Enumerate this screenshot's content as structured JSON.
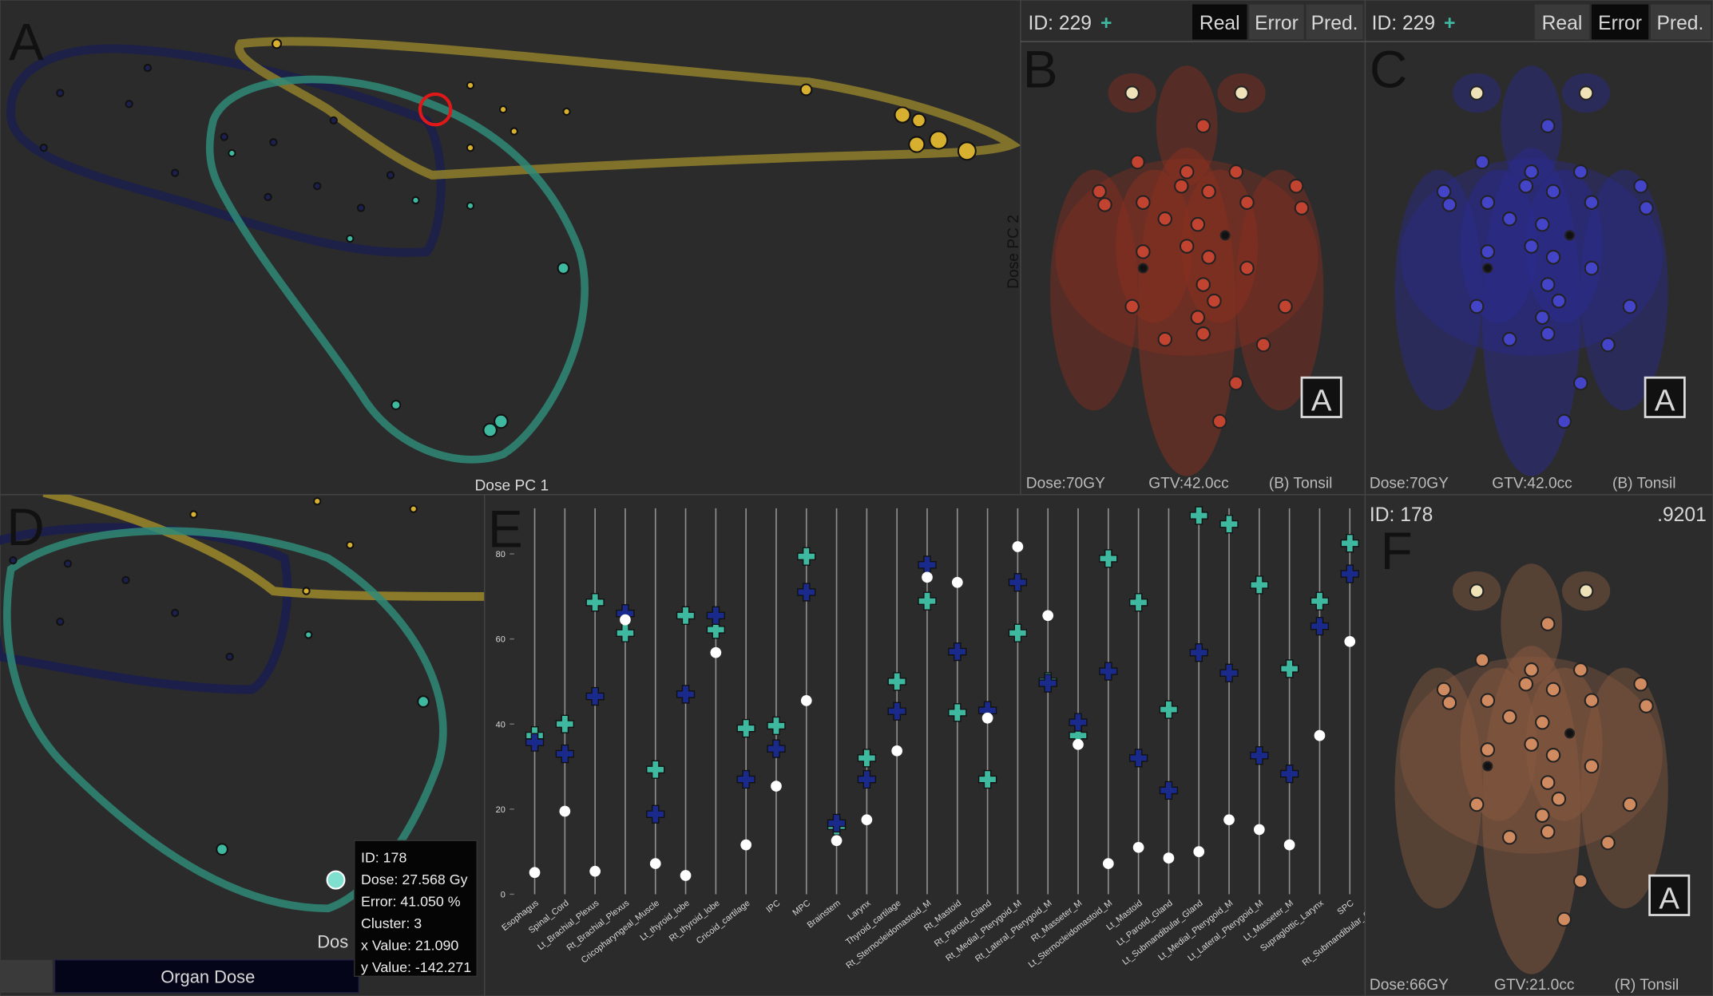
{
  "panel_labels": [
    "A",
    "B",
    "C",
    "D",
    "E",
    "F"
  ],
  "panel_a": {
    "x_axis_label": "Dose PC 1"
  },
  "panel_b": {
    "id": "ID: 229",
    "add": "+",
    "tabs": [
      "Real",
      "Error",
      "Pred."
    ],
    "y_axis_label": "Dose PC 2",
    "dose": "Dose:70GY",
    "gtv": "GTV:42.0cc",
    "site": "(B) Tonsil",
    "orientation": "A"
  },
  "panel_c": {
    "id": "ID: 229",
    "add": "+",
    "tabs": [
      "Real",
      "Error",
      "Pred."
    ],
    "dose": "Dose:70GY",
    "gtv": "GTV:42.0cc",
    "site": "(B) Tonsil",
    "orientation": "A"
  },
  "panel_d": {
    "x_axis_label": "Dos",
    "button": "Organ Dose",
    "tooltip": [
      "ID: 178",
      "Dose: 27.568 Gy",
      "Error: 41.050 %",
      "Cluster: 3",
      "x Value: 21.090",
      "y Value: -142.271"
    ]
  },
  "chart_data": {
    "type": "dotplot",
    "categories": [
      "Esophagus",
      "Spinal_Cord",
      "Lt_Brachial_Plexus",
      "Rt_Brachial_Plexus",
      "Cricopharyngeal_Muscle",
      "Lt_thyroid_lobe",
      "Rt_thyroid_lobe",
      "Cricoid_cartilage",
      "IPC",
      "MPC",
      "Brainstem",
      "Larynx",
      "Thyroid_cartilage",
      "Rt_Sternocleidomastoid_M",
      "Rt_Mastoid",
      "Rt_Parotid_Gland",
      "Rt_Medial_Pterygoid_M",
      "Rt_Lateral_Pterygoid_M",
      "Rt_Masseter_M",
      "Lt_Sternocleidomastoid_M",
      "Lt_Mastoid",
      "Lt_Parotid_Gland",
      "Lt_Submandibular_Gland",
      "Lt_Medial_Pterygoid_M",
      "Lt_Lateral_Pterygoid_M",
      "Lt_Masseter_M",
      "Supraglottic_Larynx",
      "SPC",
      "Rt_Submandibular_Gland"
    ],
    "series": [
      {
        "marker": "cross",
        "color": "#3fb8a0",
        "values": [
          37.3,
          40,
          68.6,
          61.4,
          29.3,
          65.5,
          62.2,
          39,
          39.6,
          79.4,
          16,
          32,
          50,
          68.9,
          42.7,
          27,
          61.4,
          50,
          37.3,
          78.9,
          68.6,
          43.4,
          89,
          87,
          72.7,
          53,
          68.9,
          82.5,
          null
        ]
      },
      {
        "marker": "cross",
        "color": "#1a2a8a",
        "values": [
          35.7,
          33,
          46.5,
          66,
          18.8,
          47,
          65.5,
          27,
          34.2,
          71,
          16.7,
          27,
          43,
          77.4,
          57,
          43.2,
          73.3,
          49.6,
          40.4,
          52.4,
          32,
          24.4,
          56.8,
          52,
          32.6,
          28.3,
          63,
          75.3,
          null
        ]
      },
      {
        "marker": "dot",
        "color": "#ffffff",
        "values": [
          5.1,
          19.5,
          5.4,
          64.5,
          7.2,
          4.4,
          56.8,
          11.6,
          25.4,
          45.5,
          12.6,
          17.5,
          33.7,
          74.5,
          73.3,
          41.4,
          81.7,
          65.5,
          35.2,
          7.2,
          11,
          8.5,
          10,
          17.5,
          15.2,
          11.6,
          37.3,
          59.4,
          null
        ]
      }
    ],
    "ylim": [
      0,
      92
    ],
    "yticks": [
      0,
      20,
      40,
      60,
      80
    ]
  },
  "panel_f": {
    "id": "ID: 178",
    "score": ".9201",
    "dose": "Dose:66GY",
    "gtv": "GTV:21.0cc",
    "site": "(R) Tonsil",
    "orientation": "A"
  }
}
